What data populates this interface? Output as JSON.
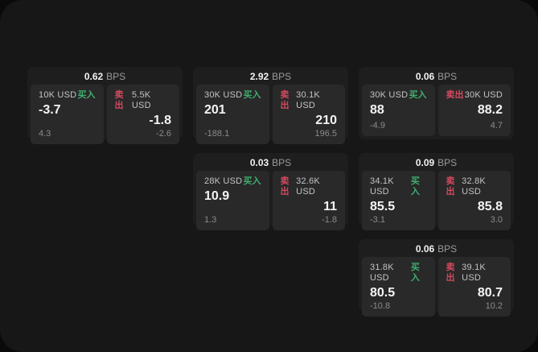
{
  "labels": {
    "bps_suffix": "BPS",
    "buy": "买入",
    "sell": "卖出"
  },
  "colors": {
    "buy_accent": "#3fae6e",
    "sell_accent": "#d34a5e",
    "screen_background": "#171717",
    "card_background": "#1e1e1e",
    "pane_background": "#292929"
  },
  "cards": [
    {
      "bps": "0.62",
      "buy": {
        "amount": "10K USD",
        "value": "-3.7",
        "delta": "4.3"
      },
      "sell": {
        "amount": "5.5K USD",
        "value": "-1.8",
        "delta": "-2.6"
      }
    },
    {
      "bps": "2.92",
      "buy": {
        "amount": "30K USD",
        "value": "201",
        "delta": "-188.1"
      },
      "sell": {
        "amount": "30.1K USD",
        "value": "210",
        "delta": "196.5"
      }
    },
    {
      "bps": "0.06",
      "buy": {
        "amount": "30K USD",
        "value": "88",
        "delta": "-4.9"
      },
      "sell": {
        "amount": "30K USD",
        "value": "88.2",
        "delta": "4.7"
      }
    },
    {
      "bps": "0.03",
      "buy": {
        "amount": "28K USD",
        "value": "10.9",
        "delta": "1.3"
      },
      "sell": {
        "amount": "32.6K USD",
        "value": "11",
        "delta": "-1.8"
      }
    },
    {
      "bps": "0.09",
      "buy": {
        "amount": "34.1K USD",
        "value": "85.5",
        "delta": "-3.1"
      },
      "sell": {
        "amount": "32.8K USD",
        "value": "85.8",
        "delta": "3.0"
      }
    },
    {
      "bps": "0.06",
      "buy": {
        "amount": "31.8K USD",
        "value": "80.5",
        "delta": "-10.8"
      },
      "sell": {
        "amount": "39.1K USD",
        "value": "80.7",
        "delta": "10.2"
      }
    }
  ]
}
